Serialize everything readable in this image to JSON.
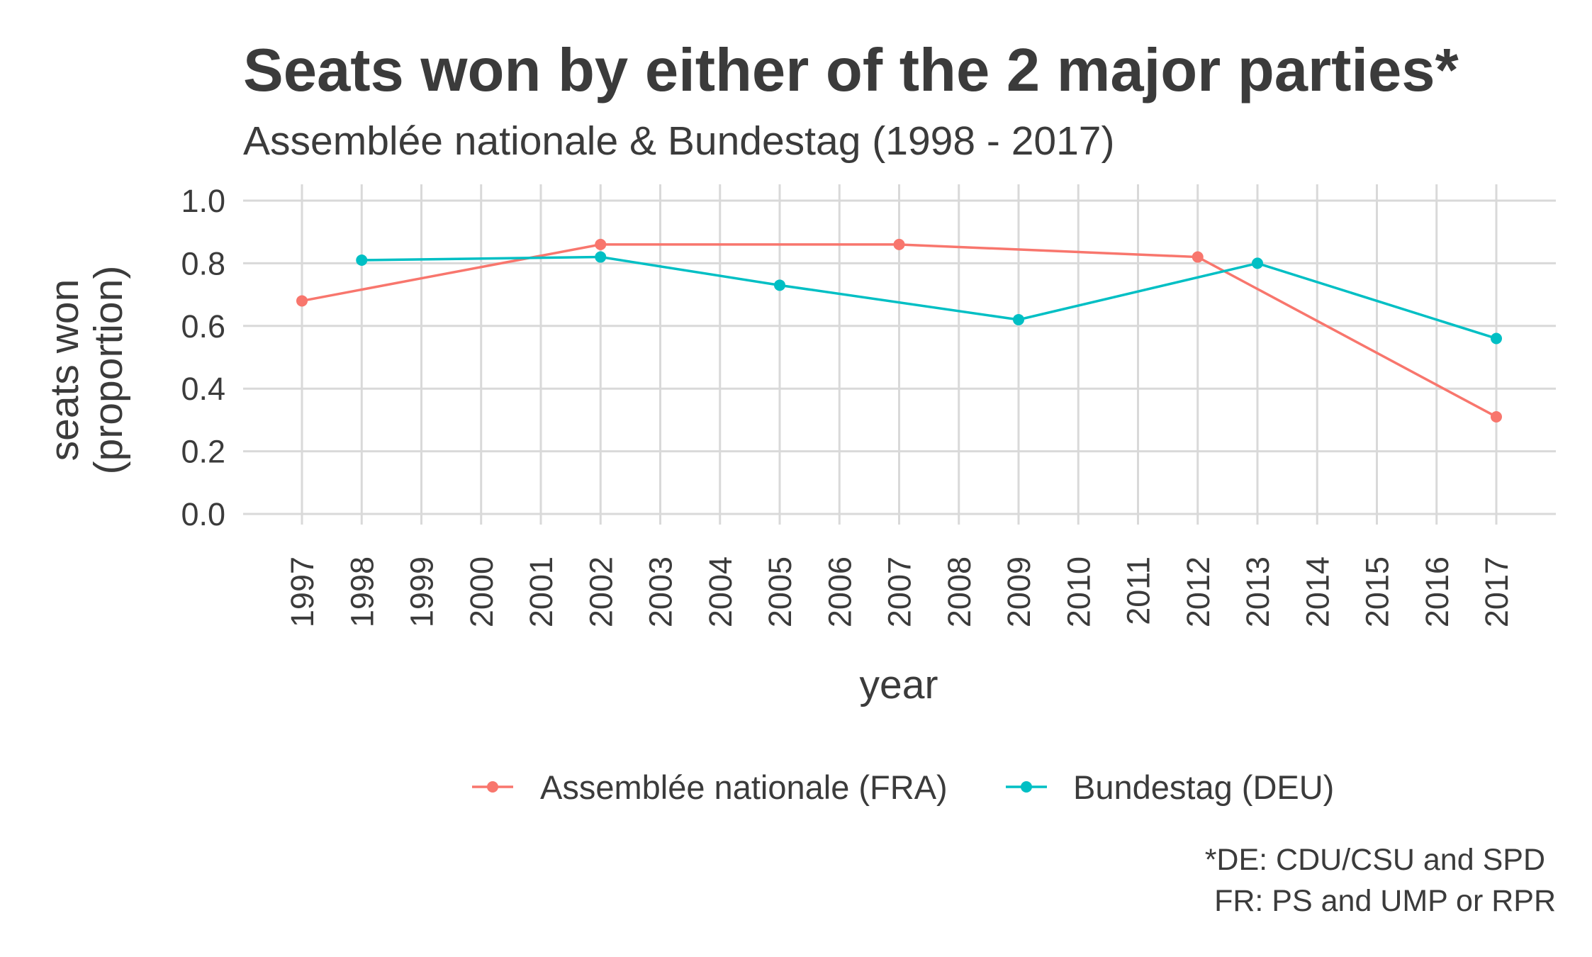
{
  "chart_data": {
    "type": "line",
    "title": "Seats won by either of the 2 major parties*",
    "subtitle": "Assemblée nationale & Bundestag (1998 - 2017)",
    "xlabel": "year",
    "ylabel_lines": [
      "seats won",
      "(proportion)"
    ],
    "xlim": [
      1997,
      2017
    ],
    "ylim": [
      0,
      1
    ],
    "x_ticks": [
      "1997",
      "1998",
      "1999",
      "2000",
      "2001",
      "2002",
      "2003",
      "2004",
      "2005",
      "2006",
      "2007",
      "2008",
      "2009",
      "2010",
      "2011",
      "2012",
      "2013",
      "2014",
      "2015",
      "2016",
      "2017"
    ],
    "y_ticks": [
      "0.0",
      "0.2",
      "0.4",
      "0.6",
      "0.8",
      "1.0"
    ],
    "grid": true,
    "legend_position": "bottom",
    "series": [
      {
        "name": "Assemblée nationale (FRA)",
        "color": "#f8766d",
        "points": [
          [
            1997,
            0.68
          ],
          [
            2002,
            0.86
          ],
          [
            2007,
            0.86
          ],
          [
            2012,
            0.82
          ],
          [
            2017,
            0.31
          ]
        ]
      },
      {
        "name": "Bundestag (DEU)",
        "color": "#00bfc4",
        "points": [
          [
            1998,
            0.81
          ],
          [
            2002,
            0.82
          ],
          [
            2005,
            0.73
          ],
          [
            2009,
            0.62
          ],
          [
            2013,
            0.8
          ],
          [
            2017,
            0.56
          ]
        ]
      }
    ],
    "caption_lines": [
      "*DE: CDU/CSU and SPD",
      "FR: PS and UMP or RPR"
    ]
  }
}
